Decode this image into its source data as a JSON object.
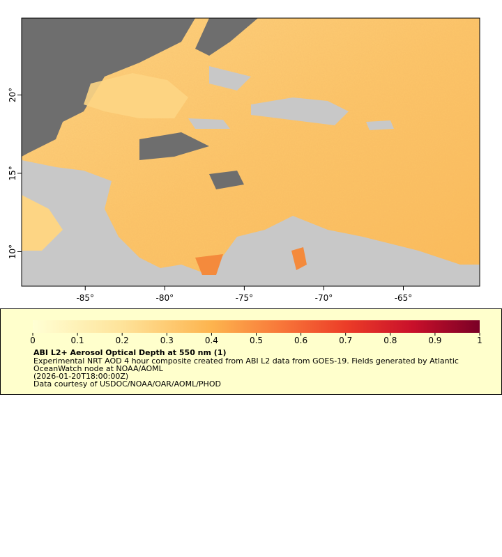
{
  "map": {
    "xlim": [
      -89,
      -60.2
    ],
    "ylim": [
      7.8,
      24.9
    ],
    "xticks": [
      {
        "value": -85,
        "label": "-85°"
      },
      {
        "value": -80,
        "label": "-80°"
      },
      {
        "value": -75,
        "label": "-75°"
      },
      {
        "value": -70,
        "label": "-70°"
      },
      {
        "value": -65,
        "label": "-65°"
      }
    ],
    "yticks": [
      {
        "value": 10,
        "label": "10°"
      },
      {
        "value": 15,
        "label": "15°"
      },
      {
        "value": 20,
        "label": "20°"
      }
    ]
  },
  "colorbar": {
    "lim": [
      0,
      1
    ],
    "ticks": [
      0,
      0.1,
      0.2,
      0.3,
      0.4,
      0.5,
      0.6,
      0.7,
      0.8,
      0.9,
      1
    ]
  },
  "legend": {
    "title": "ABI L2+ Aerosol Optical Depth at 550 nm (1)",
    "lines": [
      "Experimental NRT AOD 4 hour composite created from ABI L2 data from GOES-19. Fields generated by Atlantic",
      "OceanWatch node at NOAA/AOML",
      "(2026-01-20T18:00:00Z)",
      "Data courtesy of USDOC/NOAA/OAR/AOML/PHOD"
    ]
  }
}
